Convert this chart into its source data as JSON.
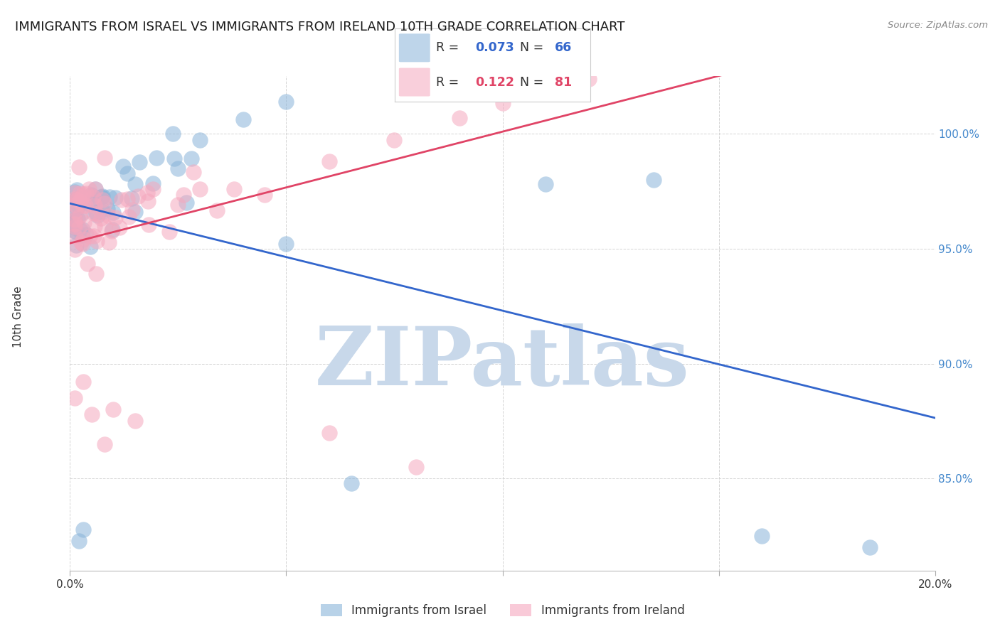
{
  "title": "IMMIGRANTS FROM ISRAEL VS IMMIGRANTS FROM IRELAND 10TH GRADE CORRELATION CHART",
  "source": "Source: ZipAtlas.com",
  "ylabel": "10th Grade",
  "xlim": [
    0.0,
    0.2
  ],
  "ylim": [
    81.0,
    102.5
  ],
  "y_ticks": [
    85.0,
    90.0,
    95.0,
    100.0
  ],
  "y_tick_labels": [
    "85.0%",
    "90.0%",
    "95.0%",
    "100.0%"
  ],
  "x_ticks": [
    0.0,
    0.05,
    0.1,
    0.15,
    0.2
  ],
  "x_tick_labels": [
    "0.0%",
    "",
    "",
    "",
    "20.0%"
  ],
  "israel_R": "0.073",
  "israel_N": "66",
  "ireland_R": "0.122",
  "ireland_N": "81",
  "israel_color": "#89b4d9",
  "ireland_color": "#f5a8be",
  "israel_line_color": "#3366cc",
  "ireland_line_color": "#e04466",
  "watermark": "ZIPatlas",
  "watermark_color": "#c8d8ea",
  "background_color": "#ffffff",
  "title_fontsize": 13
}
